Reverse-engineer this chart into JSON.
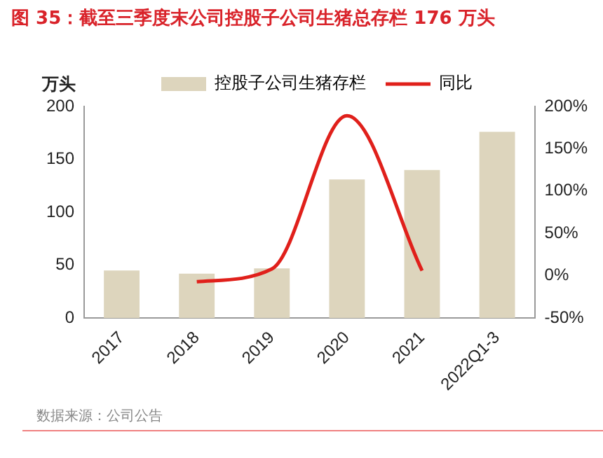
{
  "chart_data": {
    "type": "bar",
    "title": "图 35：截至三季度末公司控股子公司生猪总存栏 176 万头",
    "ylabel": "万头",
    "categories": [
      "2017",
      "2018",
      "2019",
      "2020",
      "2021",
      "2022Q1-3"
    ],
    "series": [
      {
        "name": "控股子公司生猪存栏",
        "color": "#ddd5bd",
        "values": [
          45,
          42,
          47,
          131,
          140,
          176
        ]
      },
      {
        "name": "同比",
        "type": "line",
        "axis": "y2",
        "color": "#e0201b",
        "values": [
          null,
          -7,
          8,
          189,
          6,
          null
        ]
      }
    ],
    "ylim": [
      0,
      200
    ],
    "yticks": [
      0,
      50,
      100,
      150,
      200
    ],
    "y2lim": [
      -50,
      200
    ],
    "y2ticks": [
      {
        "value": -50,
        "label": "-50%"
      },
      {
        "value": 0,
        "label": "0%"
      },
      {
        "value": 50,
        "label": "50%"
      },
      {
        "value": 100,
        "label": "100%"
      },
      {
        "value": 150,
        "label": "150%"
      },
      {
        "value": 200,
        "label": "200%"
      }
    ],
    "grid": false,
    "legend": "top",
    "marker": "none",
    "line_style": "solid",
    "annotations": [
      "数据来源：公司公告"
    ]
  }
}
